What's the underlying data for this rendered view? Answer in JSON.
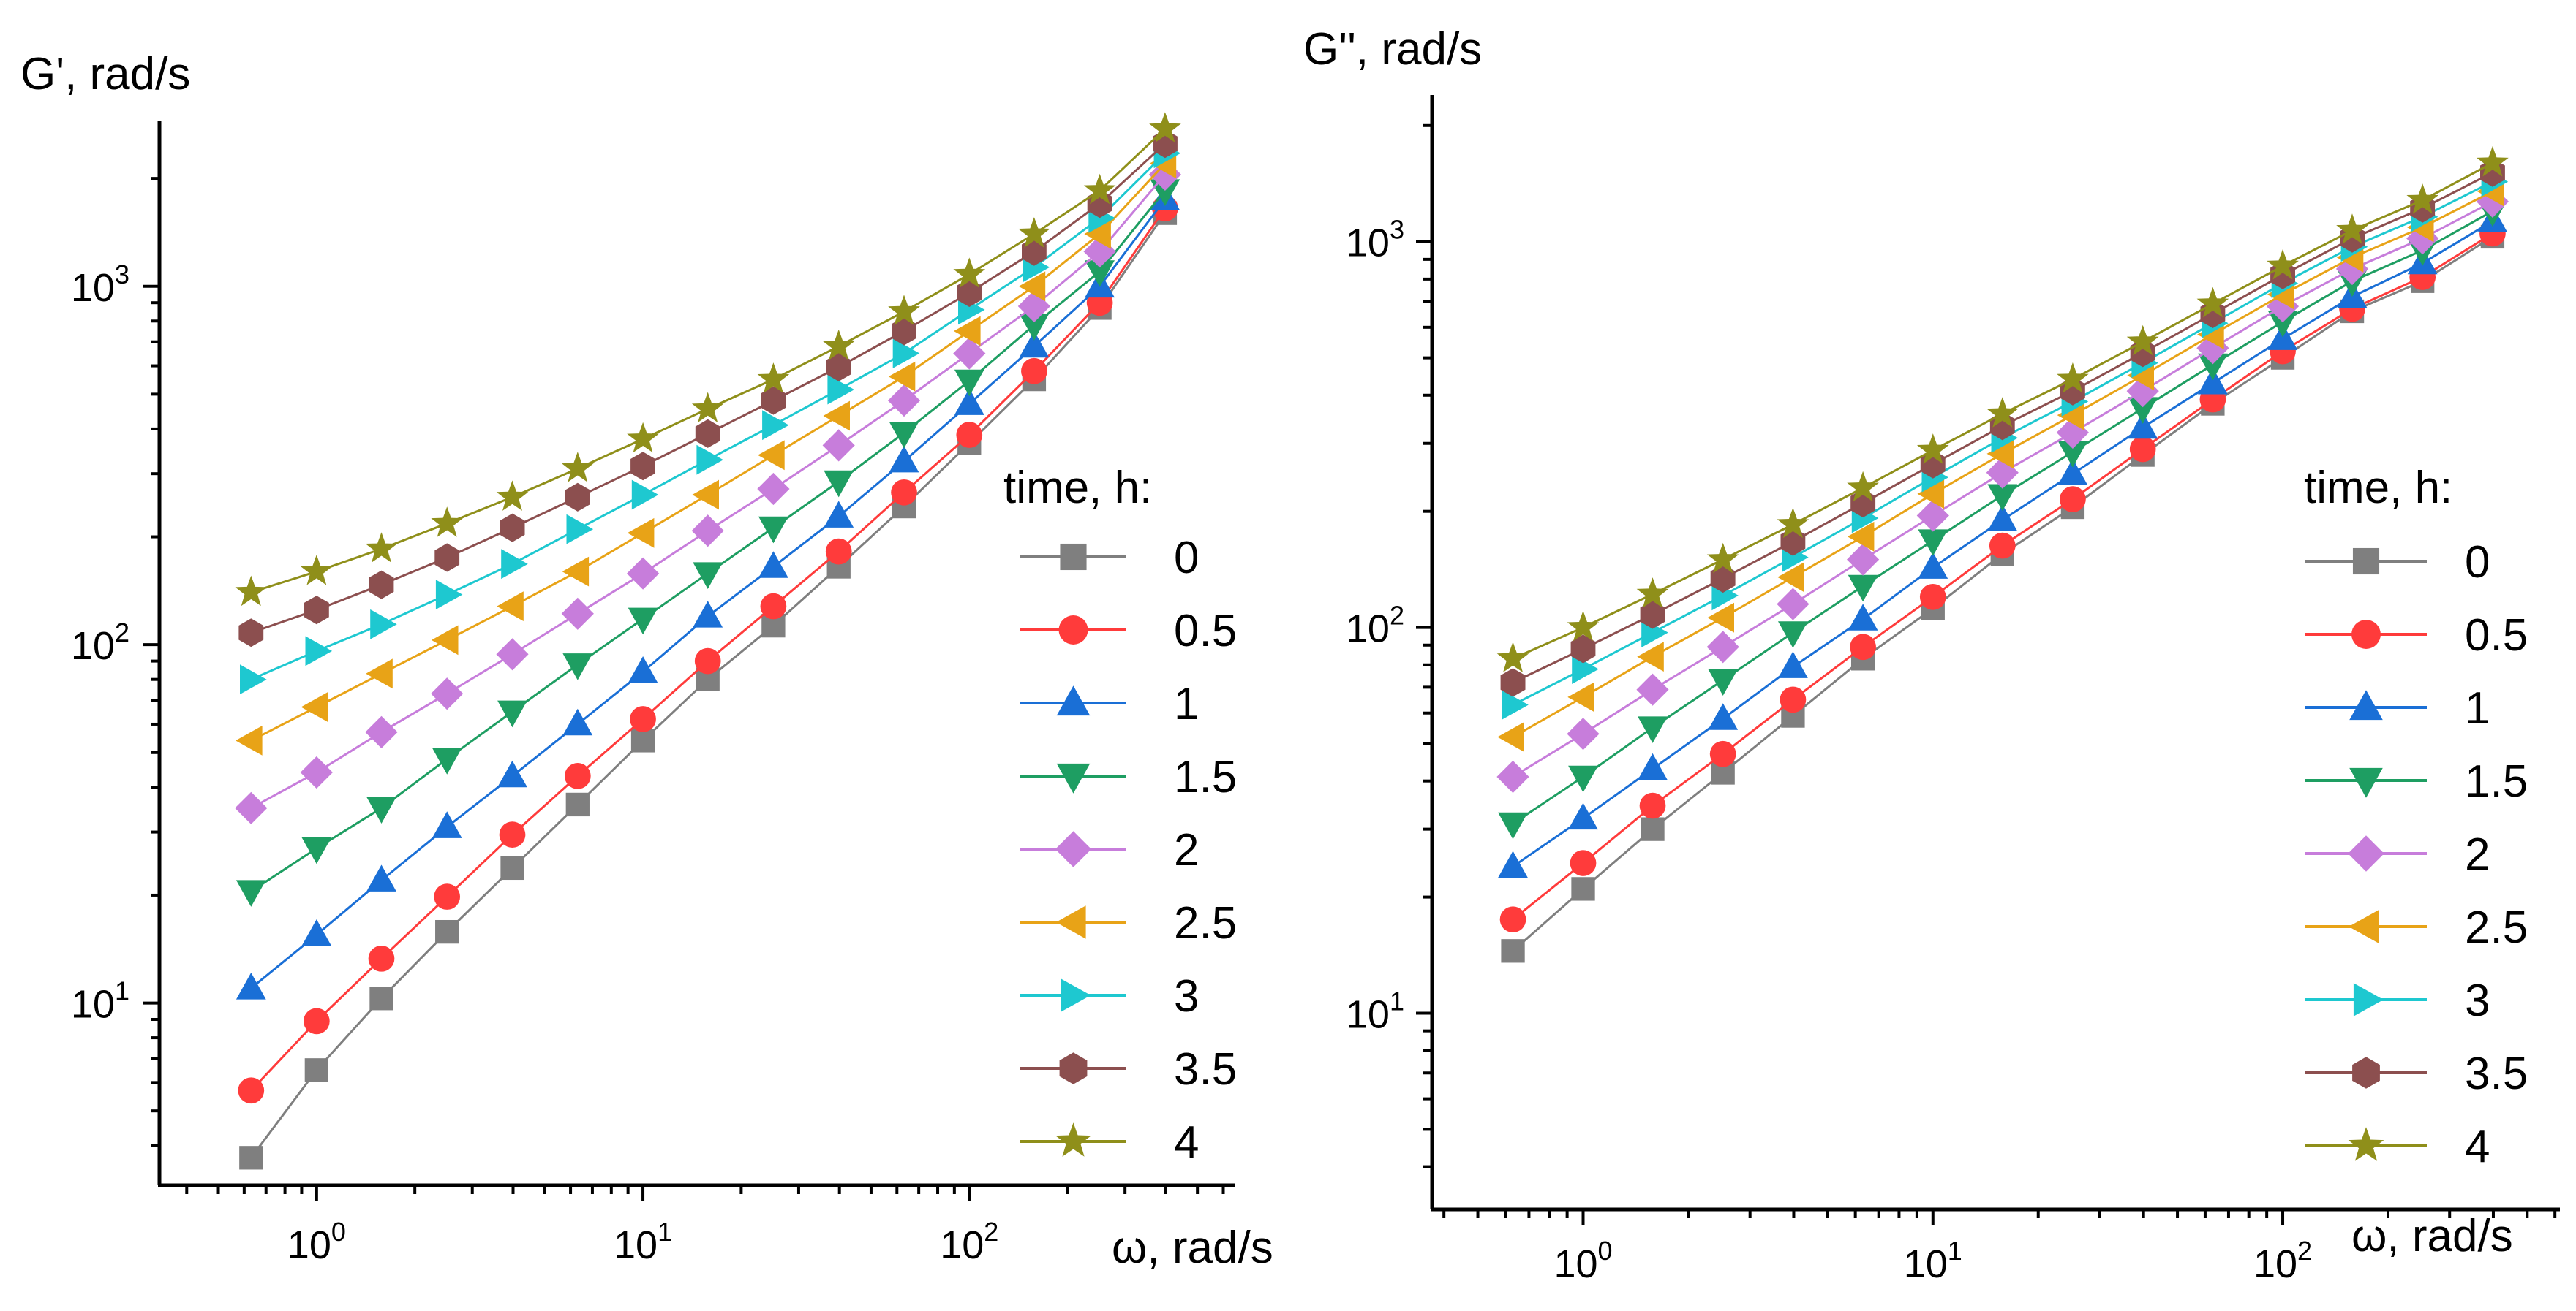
{
  "chart_data": [
    {
      "type": "line",
      "name": "G-prime",
      "xscale": "log",
      "yscale": "log",
      "xlabel": "ω, rad/s",
      "ylabel": "G', rad/s",
      "xlim": [
        0.33,
        650
      ],
      "ylim": [
        3.1,
        2900
      ],
      "xticks": [
        {
          "base": "10",
          "exp": "0",
          "value": 1
        },
        {
          "base": "10",
          "exp": "1",
          "value": 10
        },
        {
          "base": "10",
          "exp": "2",
          "value": 100
        }
      ],
      "yticks": [
        {
          "base": "10",
          "exp": "1",
          "value": 10
        },
        {
          "base": "10",
          "exp": "2",
          "value": 100
        },
        {
          "base": "10",
          "exp": "3",
          "value": 1000
        }
      ],
      "legend_title": "time, h:",
      "legend_position": "right",
      "x": [
        0.63,
        1,
        1.58,
        2.51,
        3.98,
        6.31,
        10,
        15.8,
        25.1,
        39.8,
        63.1,
        100,
        158,
        251,
        398
      ],
      "series": [
        {
          "name": "0",
          "color": "#7f7f7f",
          "marker": "square",
          "values": [
            3.7,
            6.5,
            10.3,
            15.8,
            23.8,
            35.8,
            54,
            80,
            113,
            165,
            243,
            365,
            550,
            870,
            1600
          ]
        },
        {
          "name": "0.5",
          "color": "#ff3b3b",
          "marker": "circle",
          "values": [
            5.7,
            8.9,
            13.3,
            19.8,
            29.5,
            43,
            62,
            90,
            128,
            182,
            266,
            385,
            580,
            900,
            1650
          ]
        },
        {
          "name": "1",
          "color": "#1a6fd6",
          "marker": "triangle-up",
          "values": [
            11,
            15.5,
            22,
            31,
            43,
            60,
            84,
            120,
            165,
            228,
            325,
            470,
            680,
            1000,
            1750
          ]
        },
        {
          "name": "1.5",
          "color": "#1e9e62",
          "marker": "triangle-down",
          "values": [
            20.5,
            27,
            35,
            48,
            65,
            88,
            118,
            158,
            212,
            285,
            390,
            545,
            780,
            1100,
            1850
          ]
        },
        {
          "name": "2",
          "color": "#c77ddb",
          "marker": "diamond",
          "values": [
            35,
            44,
            57,
            73,
            94,
            122,
            158,
            208,
            272,
            360,
            480,
            650,
            880,
            1250,
            2050
          ]
        },
        {
          "name": "2.5",
          "color": "#e8a317",
          "marker": "triangle-left",
          "values": [
            54,
            67,
            83,
            103,
            128,
            160,
            205,
            262,
            338,
            435,
            560,
            750,
            1000,
            1400,
            2200
          ]
        },
        {
          "name": "3",
          "color": "#1ec8d0",
          "marker": "triangle-right",
          "values": [
            80,
            96,
            114,
            138,
            168,
            210,
            262,
            328,
            410,
            515,
            650,
            860,
            1130,
            1550,
            2350
          ]
        },
        {
          "name": "3.5",
          "color": "#8c4f4f",
          "marker": "hexagon",
          "values": [
            108,
            125,
            147,
            175,
            212,
            258,
            315,
            388,
            480,
            595,
            750,
            960,
            1250,
            1700,
            2500
          ]
        },
        {
          "name": "4",
          "color": "#8f8f1a",
          "marker": "star",
          "values": [
            140,
            160,
            185,
            218,
            258,
            310,
            375,
            455,
            550,
            680,
            850,
            1080,
            1400,
            1850,
            2750
          ]
        }
      ]
    },
    {
      "type": "line",
      "name": "G-double-prime",
      "xscale": "log",
      "yscale": "log",
      "xlabel": "ω, rad/s",
      "ylabel": "G'', rad/s",
      "xlim": [
        0.37,
        620
      ],
      "ylim": [
        3.1,
        2400
      ],
      "xticks": [
        {
          "base": "10",
          "exp": "0",
          "value": 1
        },
        {
          "base": "10",
          "exp": "1",
          "value": 10
        },
        {
          "base": "10",
          "exp": "2",
          "value": 100
        }
      ],
      "yticks": [
        {
          "base": "10",
          "exp": "1",
          "value": 10
        },
        {
          "base": "10",
          "exp": "2",
          "value": 100
        },
        {
          "base": "10",
          "exp": "3",
          "value": 1000
        }
      ],
      "legend_title": "time, h:",
      "legend_position": "right",
      "x": [
        0.63,
        1,
        1.58,
        2.51,
        3.98,
        6.31,
        10,
        15.8,
        25.1,
        39.8,
        63.1,
        100,
        158,
        251,
        398
      ],
      "series": [
        {
          "name": "0",
          "color": "#7f7f7f",
          "marker": "square",
          "values": [
            14.5,
            21,
            30,
            42,
            59,
            83,
            112,
            155,
            205,
            280,
            380,
            500,
            660,
            790,
            1030
          ]
        },
        {
          "name": "0.5",
          "color": "#ff3b3b",
          "marker": "circle",
          "values": [
            17.5,
            24.5,
            34.5,
            47,
            65,
            89,
            120,
            163,
            215,
            290,
            390,
            520,
            670,
            810,
            1050
          ]
        },
        {
          "name": "1",
          "color": "#1a6fd6",
          "marker": "triangle-up",
          "values": [
            24,
            32,
            43,
            58,
            79,
            105,
            143,
            190,
            250,
            330,
            430,
            560,
            720,
            880,
            1130
          ]
        },
        {
          "name": "1.5",
          "color": "#1e9e62",
          "marker": "triangle-down",
          "values": [
            31,
            41,
            55,
            73,
            97,
            128,
            168,
            220,
            285,
            370,
            480,
            620,
            790,
            950,
            1200
          ]
        },
        {
          "name": "2",
          "color": "#c77ddb",
          "marker": "diamond",
          "values": [
            41,
            53,
            69,
            89,
            115,
            150,
            195,
            252,
            320,
            410,
            530,
            680,
            850,
            1020,
            1270
          ]
        },
        {
          "name": "2.5",
          "color": "#e8a317",
          "marker": "triangle-left",
          "values": [
            52,
            66,
            84,
            106,
            135,
            172,
            222,
            282,
            355,
            450,
            575,
            730,
            910,
            1090,
            1350
          ]
        },
        {
          "name": "3",
          "color": "#1ec8d0",
          "marker": "triangle-right",
          "values": [
            63,
            78,
            97,
            121,
            152,
            192,
            245,
            310,
            385,
            485,
            615,
            780,
            970,
            1160,
            1430
          ]
        },
        {
          "name": "3.5",
          "color": "#8c4f4f",
          "marker": "hexagon",
          "values": [
            72,
            88,
            108,
            134,
            167,
            210,
            265,
            333,
            410,
            515,
            650,
            820,
            1020,
            1220,
            1510
          ]
        },
        {
          "name": "4",
          "color": "#8f8f1a",
          "marker": "star",
          "values": [
            83,
            100,
            122,
            150,
            185,
            230,
            288,
            358,
            440,
            550,
            690,
            865,
            1070,
            1280,
            1600
          ]
        }
      ]
    }
  ]
}
